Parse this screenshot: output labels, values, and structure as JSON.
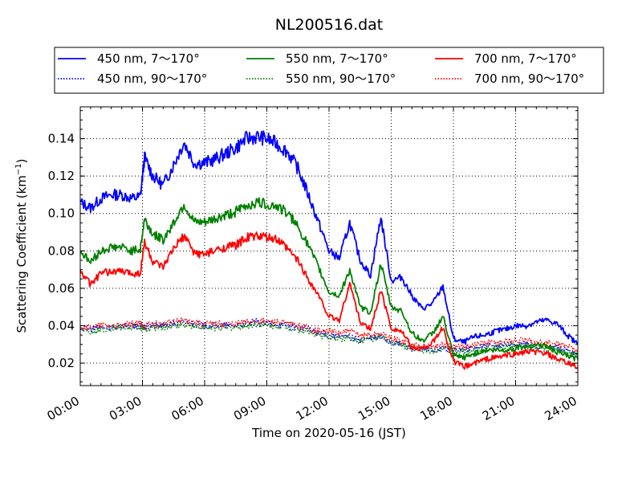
{
  "chart_data": {
    "type": "line",
    "title": "NL200516.dat",
    "xlabel": "Time on 2020-05-16 (JST)",
    "ylabel_main": "Scattering Coefficient (km",
    "ylabel_sup": "−1",
    "ylabel_close": ")",
    "xlim": [
      "00:00",
      "24:00"
    ],
    "ylim": [
      0.008,
      0.157
    ],
    "x_ticks": [
      "00:00",
      "03:00",
      "06:00",
      "09:00",
      "12:00",
      "15:00",
      "18:00",
      "21:00",
      "24:00"
    ],
    "y_ticks": [
      "0.02",
      "0.04",
      "0.06",
      "0.08",
      "0.10",
      "0.12",
      "0.14"
    ],
    "grid": true,
    "legend_placement": "top, above plot, 3 columns",
    "x_hours": [
      0,
      0.5,
      1,
      1.5,
      2,
      2.5,
      2.9,
      3.1,
      3.5,
      4,
      4.5,
      5,
      5.5,
      6,
      6.5,
      7,
      7.5,
      8,
      8.5,
      9,
      9.5,
      10,
      10.5,
      11,
      11.5,
      12,
      12.5,
      13,
      13.5,
      14,
      14.5,
      15,
      15.5,
      16,
      16.5,
      17,
      17.5,
      18,
      18.5,
      19,
      19.5,
      20,
      20.5,
      21,
      21.5,
      22,
      22.5,
      23,
      23.5,
      24
    ],
    "series": [
      {
        "name": "450 nm, 7～170°",
        "color": "#0000ff",
        "style": "solid",
        "values": [
          0.106,
          0.103,
          0.108,
          0.11,
          0.11,
          0.108,
          0.109,
          0.13,
          0.12,
          0.115,
          0.126,
          0.138,
          0.127,
          0.127,
          0.129,
          0.132,
          0.135,
          0.14,
          0.141,
          0.14,
          0.137,
          0.133,
          0.124,
          0.11,
          0.095,
          0.08,
          0.076,
          0.095,
          0.075,
          0.067,
          0.098,
          0.064,
          0.066,
          0.056,
          0.049,
          0.052,
          0.061,
          0.033,
          0.031,
          0.034,
          0.035,
          0.037,
          0.038,
          0.04,
          0.04,
          0.042,
          0.043,
          0.041,
          0.035,
          0.03
        ]
      },
      {
        "name": "550 nm, 7～170°",
        "color": "#008000",
        "style": "solid",
        "values": [
          0.08,
          0.074,
          0.08,
          0.082,
          0.082,
          0.08,
          0.081,
          0.097,
          0.089,
          0.086,
          0.095,
          0.105,
          0.095,
          0.095,
          0.097,
          0.099,
          0.101,
          0.104,
          0.106,
          0.105,
          0.104,
          0.1,
          0.093,
          0.083,
          0.071,
          0.058,
          0.056,
          0.07,
          0.05,
          0.047,
          0.073,
          0.05,
          0.048,
          0.036,
          0.032,
          0.036,
          0.045,
          0.024,
          0.023,
          0.025,
          0.027,
          0.027,
          0.027,
          0.028,
          0.029,
          0.03,
          0.029,
          0.026,
          0.024,
          0.022
        ]
      },
      {
        "name": "700 nm, 7～170°",
        "color": "#ff0000",
        "style": "solid",
        "values": [
          0.069,
          0.062,
          0.068,
          0.069,
          0.069,
          0.068,
          0.068,
          0.085,
          0.074,
          0.071,
          0.081,
          0.088,
          0.079,
          0.078,
          0.08,
          0.082,
          0.083,
          0.087,
          0.088,
          0.087,
          0.086,
          0.081,
          0.075,
          0.065,
          0.056,
          0.045,
          0.043,
          0.063,
          0.042,
          0.038,
          0.059,
          0.039,
          0.037,
          0.028,
          0.028,
          0.031,
          0.039,
          0.021,
          0.018,
          0.02,
          0.022,
          0.023,
          0.024,
          0.025,
          0.026,
          0.026,
          0.025,
          0.022,
          0.02,
          0.018
        ]
      },
      {
        "name": "450 nm, 90～170°",
        "color": "#0000ff",
        "style": "dotted",
        "values": [
          0.039,
          0.038,
          0.039,
          0.039,
          0.04,
          0.04,
          0.04,
          0.039,
          0.04,
          0.04,
          0.041,
          0.042,
          0.041,
          0.04,
          0.04,
          0.04,
          0.04,
          0.041,
          0.042,
          0.041,
          0.041,
          0.04,
          0.039,
          0.038,
          0.036,
          0.035,
          0.034,
          0.034,
          0.032,
          0.033,
          0.034,
          0.031,
          0.03,
          0.028,
          0.027,
          0.027,
          0.028,
          0.027,
          0.027,
          0.028,
          0.029,
          0.029,
          0.03,
          0.03,
          0.03,
          0.029,
          0.029,
          0.028,
          0.027,
          0.025
        ]
      },
      {
        "name": "550 nm, 90～170°",
        "color": "#008000",
        "style": "dotted",
        "values": [
          0.039,
          0.037,
          0.038,
          0.039,
          0.039,
          0.039,
          0.039,
          0.038,
          0.039,
          0.039,
          0.04,
          0.041,
          0.04,
          0.039,
          0.039,
          0.039,
          0.039,
          0.04,
          0.041,
          0.04,
          0.04,
          0.039,
          0.038,
          0.037,
          0.035,
          0.034,
          0.033,
          0.034,
          0.032,
          0.033,
          0.034,
          0.031,
          0.03,
          0.028,
          0.027,
          0.027,
          0.028,
          0.026,
          0.026,
          0.027,
          0.028,
          0.028,
          0.029,
          0.029,
          0.029,
          0.028,
          0.028,
          0.027,
          0.026,
          0.024
        ]
      },
      {
        "name": "700 nm, 90～170°",
        "color": "#ff0000",
        "style": "dotted",
        "values": [
          0.04,
          0.039,
          0.04,
          0.04,
          0.04,
          0.041,
          0.041,
          0.04,
          0.041,
          0.041,
          0.042,
          0.043,
          0.042,
          0.041,
          0.041,
          0.041,
          0.041,
          0.042,
          0.043,
          0.042,
          0.042,
          0.041,
          0.04,
          0.039,
          0.037,
          0.037,
          0.036,
          0.037,
          0.035,
          0.035,
          0.036,
          0.033,
          0.032,
          0.03,
          0.029,
          0.029,
          0.03,
          0.028,
          0.029,
          0.03,
          0.031,
          0.031,
          0.032,
          0.032,
          0.032,
          0.031,
          0.031,
          0.03,
          0.029,
          0.027
        ]
      }
    ]
  }
}
